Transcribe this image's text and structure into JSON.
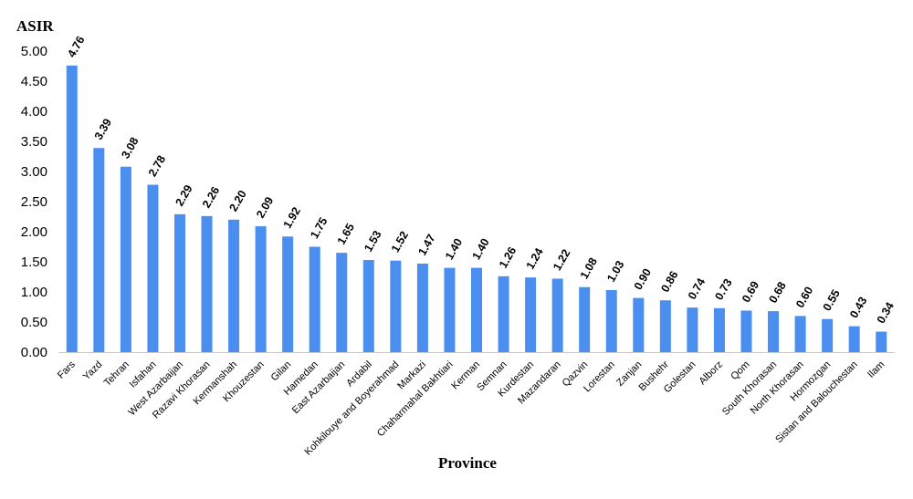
{
  "chart_data": {
    "type": "bar",
    "ylabel": "ASIR",
    "xlabel": "Province",
    "ylim": [
      0,
      5
    ],
    "yticks": [
      "0.00",
      "0.50",
      "1.00",
      "1.50",
      "2.00",
      "2.50",
      "3.00",
      "3.50",
      "4.00",
      "4.50",
      "5.00"
    ],
    "grid": false,
    "bar_color": "#4a8ef0",
    "categories": [
      "Fars",
      "Yazd",
      "Tehran",
      "Isfahan",
      "West Azarbaijan",
      "Razavi Khorasan",
      "Kermanshah",
      "Khouzestan",
      "Gilan",
      "Hamedan",
      "East Azarbaijan",
      "Ardabil",
      "Kohkilouye and Boyerahmad",
      "Markazi",
      "Chaharmahal Bakhtiari",
      "Kerman",
      "Semnan",
      "Kurdestan",
      "Mazandaran",
      "Qazvin",
      "Lorestan",
      "Zanjan",
      "Bushehr",
      "Golestan",
      "Alborz",
      "Qom",
      "South Khorasan",
      "North Khorasan",
      "Hormozgan",
      "Sistan and Balouchestan",
      "Ilam"
    ],
    "values": [
      4.76,
      3.39,
      3.08,
      2.78,
      2.29,
      2.26,
      2.2,
      2.09,
      1.92,
      1.75,
      1.65,
      1.53,
      1.52,
      1.47,
      1.4,
      1.4,
      1.26,
      1.24,
      1.22,
      1.08,
      1.03,
      0.9,
      0.86,
      0.74,
      0.73,
      0.69,
      0.68,
      0.6,
      0.55,
      0.43,
      0.34
    ],
    "value_labels": [
      "4.76",
      "3.39",
      "3.08",
      "2.78",
      "2.29",
      "2.26",
      "2.20",
      "2.09",
      "1.92",
      "1.75",
      "1.65",
      "1.53",
      "1.52",
      "1.47",
      "1.40",
      "1.40",
      "1.26",
      "1.24",
      "1.22",
      "1.08",
      "1.03",
      "0.90",
      "0.86",
      "0.74",
      "0.73",
      "0.69",
      "0.68",
      "0.60",
      "0.55",
      "0.43",
      "0.34"
    ]
  }
}
